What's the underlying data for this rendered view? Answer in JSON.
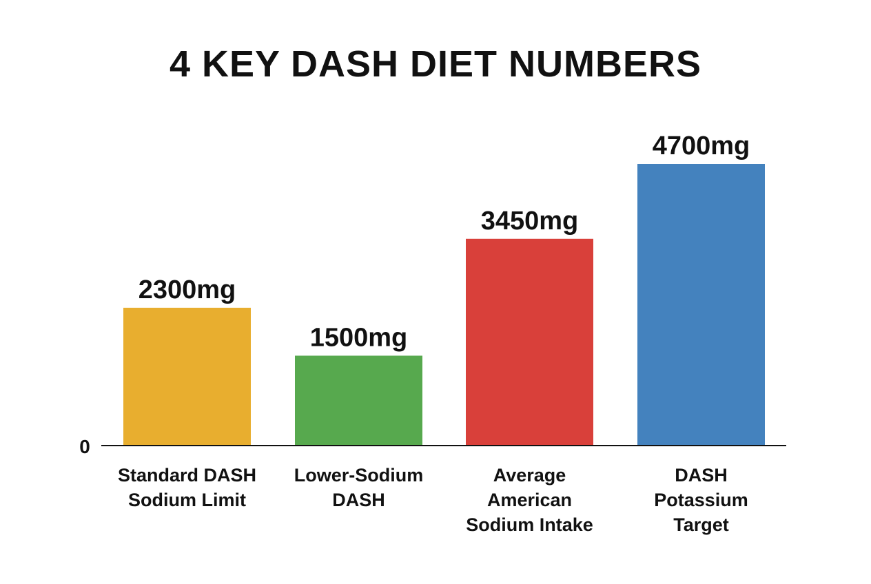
{
  "chart_data": {
    "type": "bar",
    "title": "4 KEY DASH DIET NUMBERS",
    "categories": [
      [
        "Standard DASH",
        "Sodium Limit"
      ],
      [
        "Lower-Sodium",
        "DASH"
      ],
      [
        "Average",
        "American",
        "Sodium Intake"
      ],
      [
        "DASH",
        "Potassium",
        "Target"
      ]
    ],
    "values": [
      2300,
      1500,
      3450,
      4700
    ],
    "data_labels": [
      "2300mg",
      "1500mg",
      "3450mg",
      "4700mg"
    ],
    "colors": [
      "#E8AE2F",
      "#57A94E",
      "#D9403A",
      "#4482BE"
    ],
    "y_tick_labels": [
      "0"
    ],
    "ylim": [
      0,
      4700
    ],
    "xlabel": "",
    "ylabel": "",
    "grid": false,
    "legend": "none"
  }
}
